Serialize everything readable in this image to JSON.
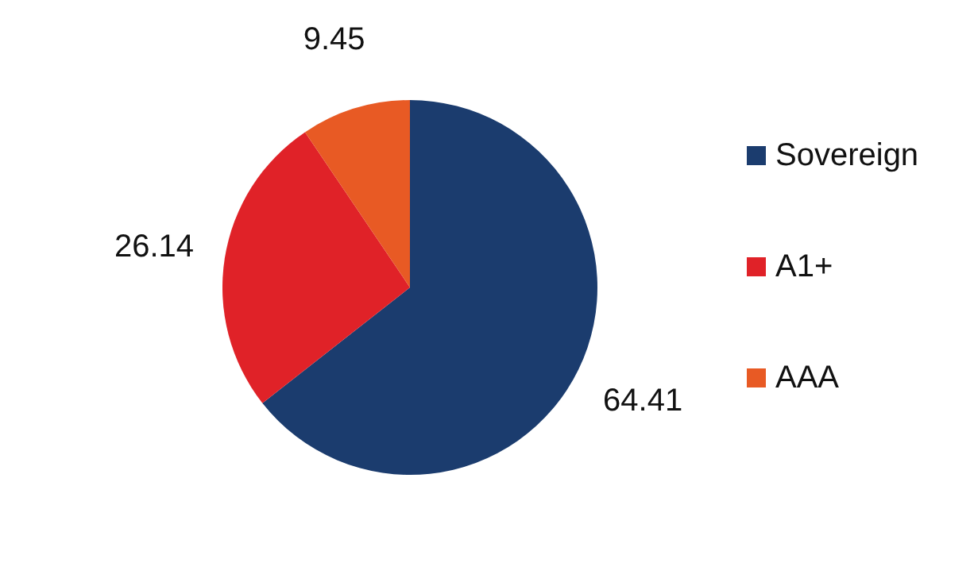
{
  "chart_data": {
    "type": "pie",
    "categories": [
      "Sovereign",
      "A1+",
      "AAA"
    ],
    "values": [
      64.41,
      26.14,
      9.45
    ],
    "colors": [
      "#1b3c6e",
      "#e02228",
      "#e85a24"
    ],
    "data_labels": true,
    "legend": "right"
  }
}
